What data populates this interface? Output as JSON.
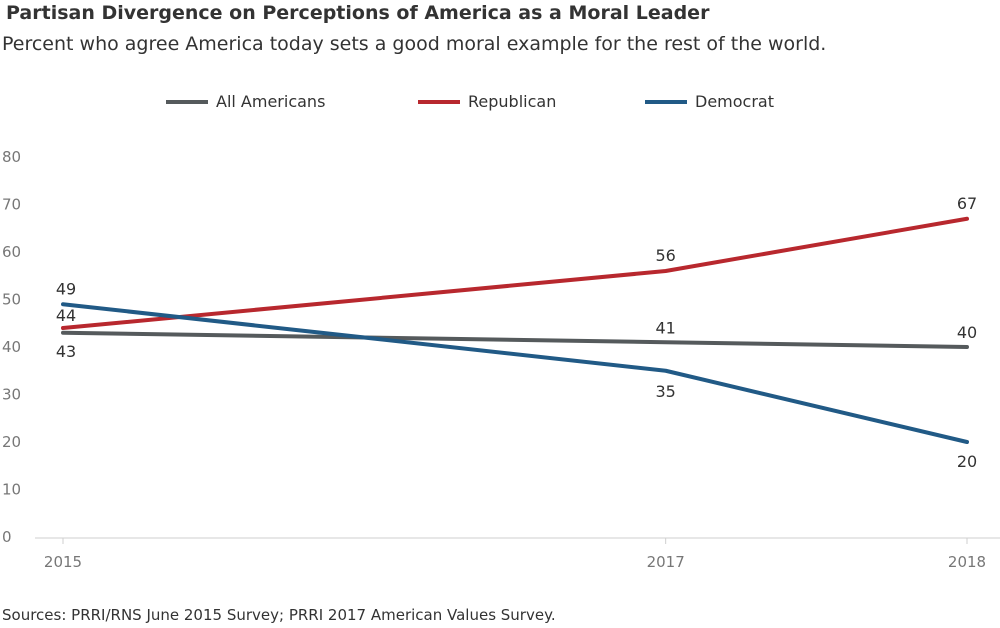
{
  "title": "Partisan Divergence on Perceptions of America as a Moral Leader",
  "subtitle": "Percent who agree America today sets a good moral example for the rest of the world.",
  "source": "Sources: PRRI/RNS June 2015 Survey; PRRI 2017 American Values Survey.",
  "legend": [
    {
      "label": "All Americans",
      "color": "#555a5c"
    },
    {
      "label": "Republican",
      "color": "#b8282e"
    },
    {
      "label": "Democrat",
      "color": "#215a86"
    }
  ],
  "chart_data": {
    "type": "line",
    "x": [
      2015,
      2017,
      2018
    ],
    "x_tick_labels": [
      "2015",
      "2017",
      "2018"
    ],
    "ylim": [
      0,
      80
    ],
    "y_ticks": [
      0,
      10,
      20,
      30,
      40,
      50,
      60,
      70,
      80
    ],
    "grid": false,
    "legend_position": "top",
    "series": [
      {
        "name": "All Americans",
        "values": [
          43,
          41,
          40
        ],
        "color": "#555a5c"
      },
      {
        "name": "Republican",
        "values": [
          44,
          56,
          67
        ],
        "color": "#b8282e"
      },
      {
        "name": "Democrat",
        "values": [
          49,
          35,
          20
        ],
        "color": "#215a86"
      }
    ]
  }
}
